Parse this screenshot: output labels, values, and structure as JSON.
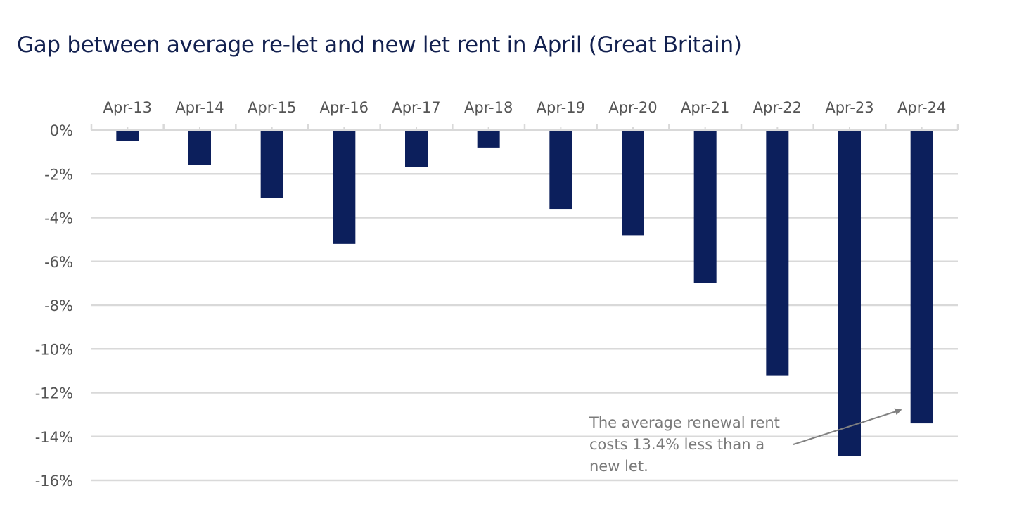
{
  "chart_data": {
    "type": "bar",
    "title": "Gap between average re-let and new let rent in April (Great Britain)",
    "xlabel": "",
    "ylabel": "",
    "categories": [
      "Apr-13",
      "Apr-14",
      "Apr-15",
      "Apr-16",
      "Apr-17",
      "Apr-18",
      "Apr-19",
      "Apr-20",
      "Apr-21",
      "Apr-22",
      "Apr-23",
      "Apr-24"
    ],
    "values": [
      -0.5,
      -1.6,
      -3.1,
      -5.2,
      -1.7,
      -0.8,
      -3.6,
      -4.8,
      -7.0,
      -11.2,
      -14.9,
      -13.4
    ],
    "unit": "%",
    "ylim": [
      -16,
      0
    ],
    "yticks": [
      0,
      -2,
      -4,
      -6,
      -8,
      -10,
      -12,
      -14,
      -16
    ],
    "ytick_labels": [
      "0%",
      "-2%",
      "-4%",
      "-6%",
      "-8%",
      "-10%",
      "-12%",
      "-14%",
      "-16%"
    ],
    "x_axis_position": "top",
    "grid": true,
    "legend": "none",
    "bar_color": "#0c1f5c",
    "annotation": {
      "lines": [
        "The average renewal rent",
        "costs 13.4% less than a",
        "new let."
      ],
      "points_to": "Apr-24",
      "color": "#7a7a7a"
    }
  }
}
